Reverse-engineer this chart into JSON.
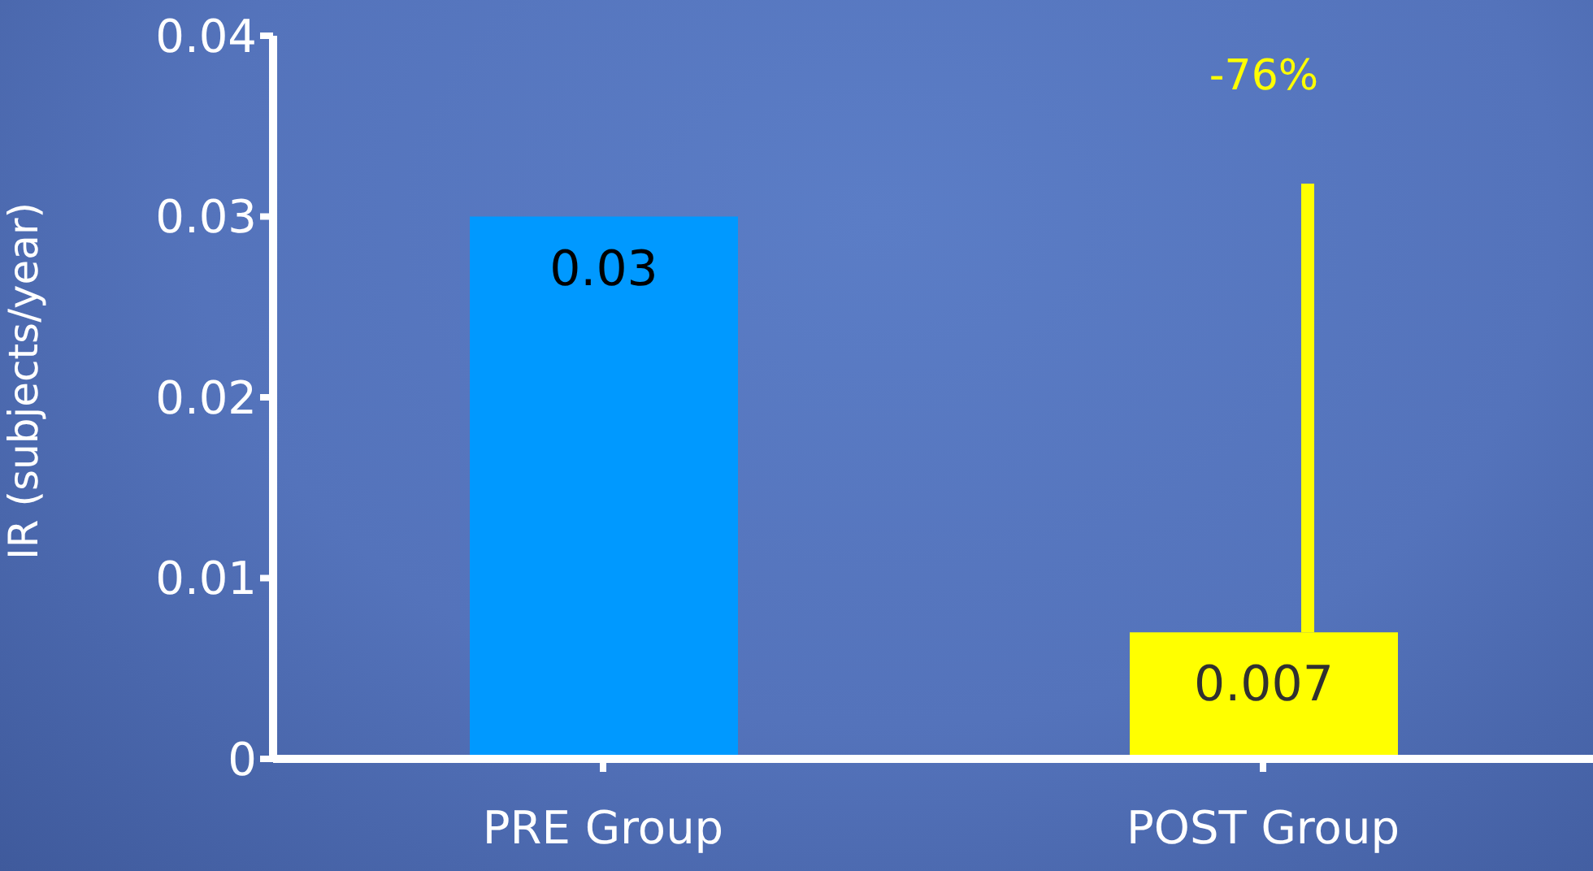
{
  "chart_data": {
    "type": "bar",
    "ylabel": "IR (subjects/year)",
    "categories": [
      "PRE Group",
      "POST Group"
    ],
    "values": [
      0.03,
      0.007
    ],
    "colors": [
      "#0099ff",
      "#ffff00"
    ],
    "ylim": [
      0,
      0.04
    ],
    "yticks": [
      0,
      0.01,
      0.02,
      0.03,
      0.04
    ],
    "data_labels": true,
    "annotations": [
      "-76%"
    ]
  }
}
